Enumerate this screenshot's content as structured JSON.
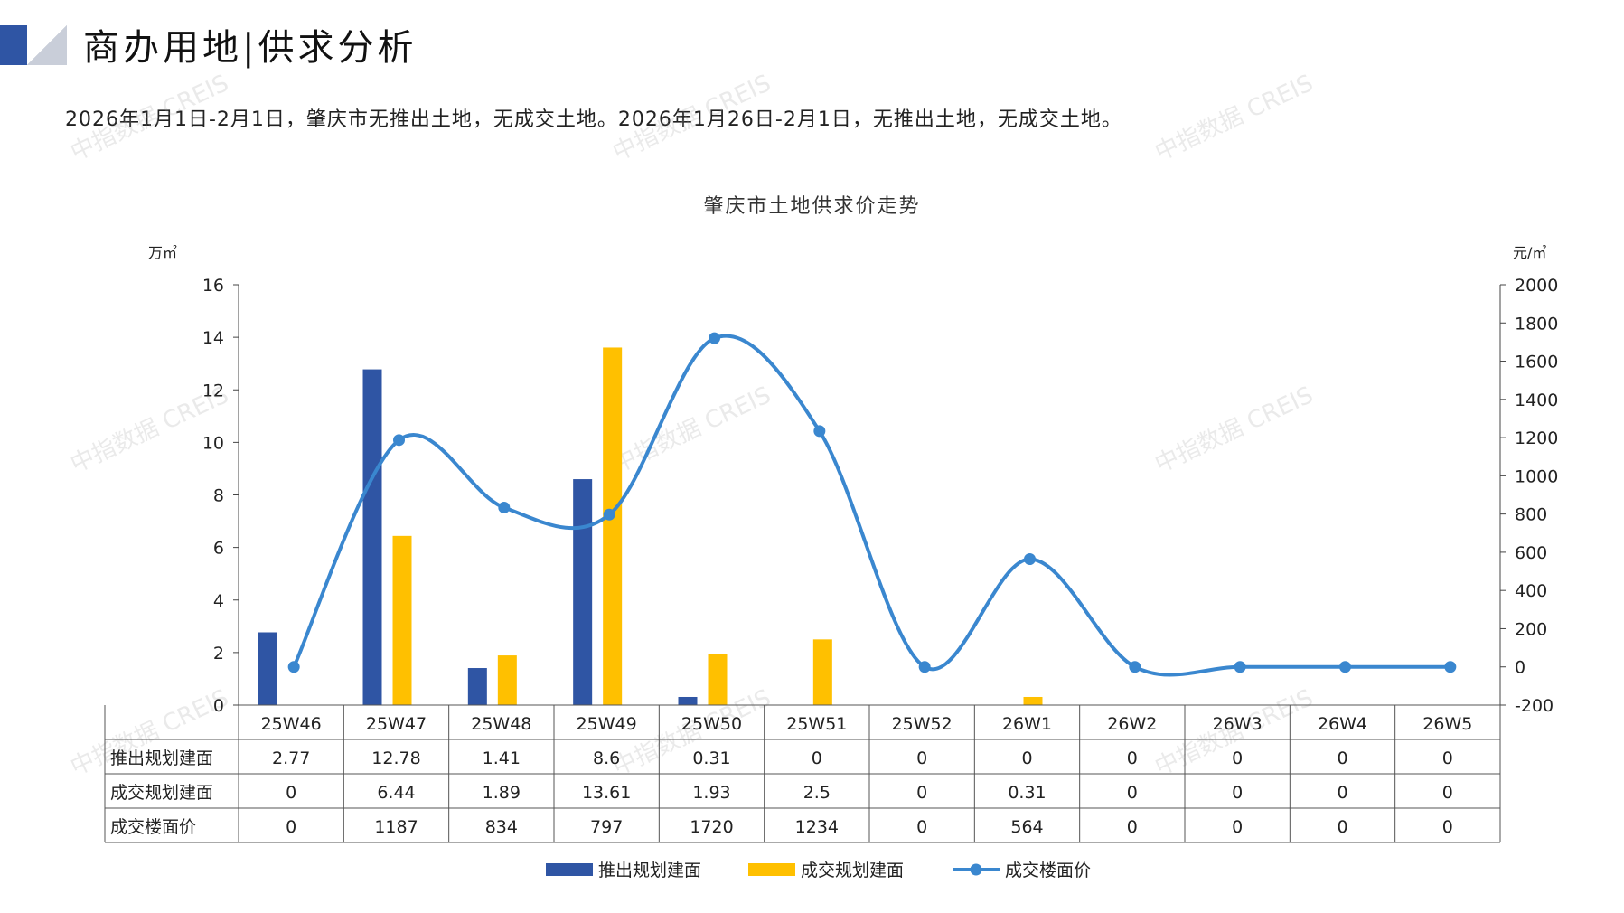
{
  "header": {
    "title": "商办用地|供求分析",
    "summary": "2026年1月1日-2月1日，肇庆市无推出土地，无成交土地。2026年1月26日-2月1日，无推出土地，无成交土地。"
  },
  "watermark": "中指数据 CREIS",
  "colors": {
    "supply": "#2f55a4",
    "deal": "#ffc000",
    "price": "#3a87cf",
    "text": "#222222"
  },
  "chart_data": {
    "type": "bar",
    "title": "肇庆市土地供求价走势",
    "categories": [
      "25W46",
      "25W47",
      "25W48",
      "25W49",
      "25W50",
      "25W51",
      "25W52",
      "26W1",
      "26W2",
      "26W3",
      "26W4",
      "26W5"
    ],
    "y_left": {
      "unit": "万㎡",
      "min": 0,
      "max": 16,
      "ticks": [
        "0",
        "2",
        "4",
        "6",
        "8",
        "10",
        "12",
        "14",
        "16"
      ]
    },
    "y_right": {
      "unit": "元/㎡",
      "min": -200,
      "max": 2000,
      "ticks": [
        "-200",
        "0",
        "200",
        "400",
        "600",
        "800",
        "1000",
        "1200",
        "1400",
        "1600",
        "1800",
        "2000"
      ]
    },
    "series": [
      {
        "name": "推出规划建面",
        "type": "bar",
        "axis": "left",
        "values": [
          2.77,
          12.78,
          1.41,
          8.6,
          0.31,
          0,
          0,
          0,
          0,
          0,
          0,
          0
        ],
        "labels": [
          "2.77",
          "12.78",
          "1.41",
          "8.6",
          "0.31",
          "0",
          "0",
          "0",
          "0",
          "0",
          "0",
          "0"
        ]
      },
      {
        "name": "成交规划建面",
        "type": "bar",
        "axis": "left",
        "values": [
          0,
          6.44,
          1.89,
          13.61,
          1.93,
          2.5,
          0,
          0.31,
          0,
          0,
          0,
          0
        ],
        "labels": [
          "0",
          "6.44",
          "1.89",
          "13.61",
          "1.93",
          "2.5",
          "0",
          "0.31",
          "0",
          "0",
          "0",
          "0"
        ]
      },
      {
        "name": "成交楼面价",
        "type": "line",
        "axis": "right",
        "smooth": true,
        "values": [
          0,
          1187,
          834,
          797,
          1720,
          1234,
          0,
          564,
          0,
          0,
          0,
          0
        ],
        "labels": [
          "0",
          "1187",
          "834",
          "797",
          "1720",
          "1234",
          "0",
          "564",
          "0",
          "0",
          "0",
          "0"
        ]
      }
    ],
    "legend": {
      "placement": "bottom"
    },
    "data_table": true,
    "grid": false
  }
}
